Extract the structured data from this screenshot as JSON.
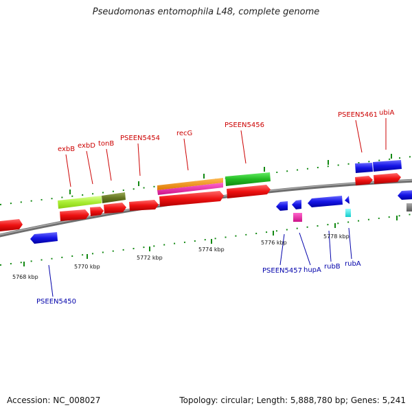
{
  "title": "Pseudomonas entomophila L48, complete genome",
  "footer": {
    "accession": "Accession: NC_008027",
    "summary": "Topology: circular; Length: 5,888,780 bp; Genes: 5,241"
  },
  "colors": {
    "forward_label": "#cc0000",
    "reverse_label": "#0000aa",
    "backbone": "#888888",
    "tick": "#118811"
  },
  "axis_labels": [
    "5768 kbp",
    "5770 kbp",
    "5772 kbp",
    "5774 kbp",
    "5776 kbp",
    "5778 kbp"
  ],
  "forward_labels": [
    "exbB",
    "exbD",
    "tonB",
    "PSEEN5454",
    "recG",
    "PSEEN5456",
    "PSEEN5461",
    "ubiA"
  ],
  "reverse_labels": [
    "PSEEN5450",
    "PSEEN5457",
    "hupA",
    "rubB",
    "rubA"
  ]
}
